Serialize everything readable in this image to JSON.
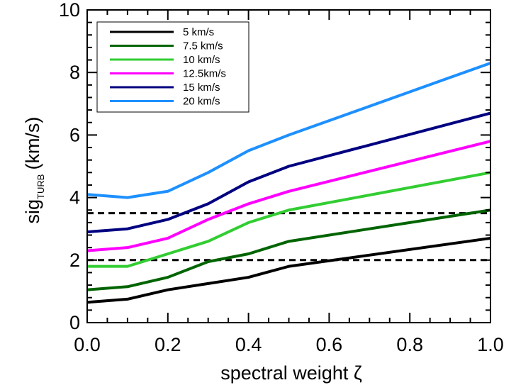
{
  "chart_data": {
    "type": "line",
    "title": "",
    "xlabel": "spectral weight  ζ",
    "ylabel_main": "sig",
    "ylabel_sub": "TURB",
    "ylabel_unit": "(km/s)",
    "xlim": [
      0.0,
      1.0
    ],
    "ylim": [
      0,
      10
    ],
    "xticks": [
      "0.0",
      "0.2",
      "0.4",
      "0.6",
      "0.8",
      "1.0"
    ],
    "yticks": [
      "0",
      "2",
      "4",
      "6",
      "8",
      "10"
    ],
    "grid": false,
    "legend_position": "top-left",
    "x": [
      0.0,
      0.1,
      0.2,
      0.3,
      0.4,
      0.5,
      1.0
    ],
    "series": [
      {
        "name": "5 km/s",
        "color": "#000000",
        "values": [
          0.65,
          0.75,
          1.05,
          1.25,
          1.45,
          1.8,
          2.7
        ]
      },
      {
        "name": "7.5 km/s",
        "color": "#006400",
        "values": [
          1.05,
          1.15,
          1.45,
          1.95,
          2.2,
          2.6,
          3.6
        ]
      },
      {
        "name": "10 km/s",
        "color": "#32cd32",
        "values": [
          1.8,
          1.8,
          2.2,
          2.6,
          3.2,
          3.6,
          4.8
        ]
      },
      {
        "name": "12.5km/s",
        "color": "#ff00ff",
        "values": [
          2.3,
          2.4,
          2.7,
          3.3,
          3.8,
          4.2,
          5.8
        ]
      },
      {
        "name": "15 km/s",
        "color": "#000080",
        "values": [
          2.9,
          3.0,
          3.3,
          3.8,
          4.5,
          5.0,
          6.7
        ]
      },
      {
        "name": "20 km/s",
        "color": "#1e90ff",
        "values": [
          4.1,
          4.0,
          4.2,
          4.8,
          5.5,
          6.0,
          8.3
        ]
      }
    ],
    "reference_lines": [
      {
        "y": 3.5,
        "style": "dashed",
        "color": "#000000"
      },
      {
        "y": 2.0,
        "style": "dashed",
        "color": "#000000"
      }
    ]
  }
}
